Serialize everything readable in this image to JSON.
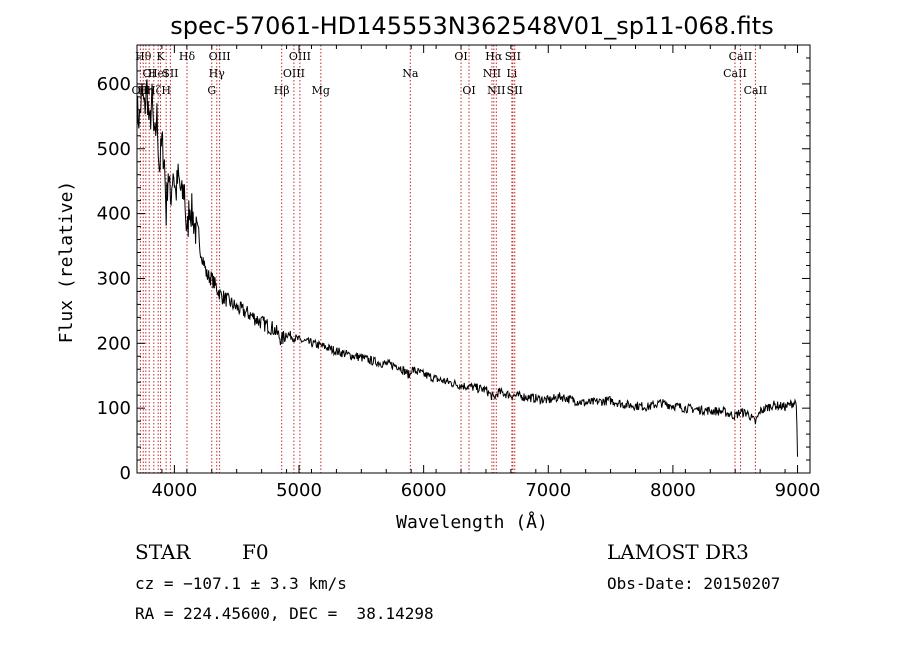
{
  "chart_data": {
    "type": "line",
    "title": "spec-57061-HD145553N362548V01_sp11-068.fits",
    "xlabel": "Wavelength (Å)",
    "ylabel": "Flux (relative)",
    "xlim": [
      3700,
      9100
    ],
    "ylim": [
      0,
      660
    ],
    "xticks": [
      4000,
      5000,
      6000,
      7000,
      8000,
      9000
    ],
    "yticks": [
      0,
      100,
      200,
      300,
      400,
      500,
      600
    ],
    "grid": false,
    "series": [
      {
        "name": "flux",
        "x": [
          3700,
          3720,
          3740,
          3760,
          3780,
          3800,
          3820,
          3840,
          3860,
          3880,
          3900,
          3920,
          3934,
          3950,
          3968,
          3990,
          4010,
          4030,
          4060,
          4080,
          4101,
          4120,
          4150,
          4180,
          4200,
          4230,
          4260,
          4300,
          4340,
          4370,
          4400,
          4500,
          4600,
          4700,
          4800,
          4861,
          4900,
          5000,
          5100,
          5200,
          5300,
          5400,
          5500,
          5600,
          5700,
          5800,
          5890,
          5900,
          6000,
          6100,
          6200,
          6300,
          6400,
          6500,
          6563,
          6600,
          6700,
          6800,
          6900,
          7000,
          7100,
          7200,
          7300,
          7400,
          7500,
          7600,
          7700,
          7800,
          7900,
          8000,
          8100,
          8200,
          8300,
          8400,
          8498,
          8542,
          8600,
          8662,
          8700,
          8800,
          8900,
          8990,
          9000
        ],
        "values": [
          560,
          545,
          585,
          560,
          595,
          530,
          575,
          505,
          550,
          470,
          510,
          480,
          400,
          470,
          420,
          470,
          430,
          455,
          425,
          440,
          360,
          415,
          395,
          365,
          350,
          330,
          305,
          300,
          285,
          275,
          270,
          255,
          245,
          232,
          222,
          205,
          215,
          205,
          200,
          195,
          188,
          182,
          178,
          172,
          168,
          165,
          150,
          160,
          152,
          145,
          140,
          135,
          132,
          128,
          115,
          125,
          120,
          118,
          115,
          112,
          118,
          112,
          108,
          110,
          112,
          106,
          104,
          102,
          108,
          104,
          100,
          98,
          96,
          95,
          88,
          94,
          92,
          78,
          95,
          105,
          102,
          110,
          25
        ]
      }
    ],
    "lines": [
      {
        "wave": 3727,
        "label": "OII",
        "row": 3
      },
      {
        "wave": 3750,
        "label": "Hθ",
        "row": 1
      },
      {
        "wave": 3771,
        "label": "Hη",
        "row": 3
      },
      {
        "wave": 3798,
        "label": "OI",
        "row": 2
      },
      {
        "wave": 3835,
        "label": "Hζ",
        "row": 3
      },
      {
        "wave": 3870,
        "label": "HeI",
        "row": 2
      },
      {
        "wave": 3889,
        "label": "K",
        "row": 1
      },
      {
        "wave": 3934,
        "label": "H",
        "row": 3
      },
      {
        "wave": 3968,
        "label": "SII",
        "row": 2
      },
      {
        "wave": 4101,
        "label": "Hδ",
        "row": 1
      },
      {
        "wave": 4300,
        "label": "G",
        "row": 3
      },
      {
        "wave": 4340,
        "label": "Hγ",
        "row": 2
      },
      {
        "wave": 4363,
        "label": "OIII",
        "row": 1
      },
      {
        "wave": 4861,
        "label": "Hβ",
        "row": 3
      },
      {
        "wave": 4959,
        "label": "OIII",
        "row": 2
      },
      {
        "wave": 5007,
        "label": "OIII",
        "row": 1
      },
      {
        "wave": 5175,
        "label": "Mg",
        "row": 3
      },
      {
        "wave": 5893,
        "label": "Na",
        "row": 2
      },
      {
        "wave": 6300,
        "label": "OI",
        "row": 1
      },
      {
        "wave": 6364,
        "label": "OI",
        "row": 3
      },
      {
        "wave": 6548,
        "label": "NII",
        "row": 2
      },
      {
        "wave": 6563,
        "label": "Hα",
        "row": 1
      },
      {
        "wave": 6583,
        "label": "NII",
        "row": 3
      },
      {
        "wave": 6708,
        "label": "Li",
        "row": 2
      },
      {
        "wave": 6716,
        "label": "SII",
        "row": 1
      },
      {
        "wave": 6731,
        "label": "SII",
        "row": 3
      },
      {
        "wave": 8498,
        "label": "CaII",
        "row": 2
      },
      {
        "wave": 8542,
        "label": "CaII",
        "row": 1
      },
      {
        "wave": 8662,
        "label": "CaII",
        "row": 3
      }
    ]
  },
  "footer": {
    "object_type": "STAR",
    "subclass": "F0",
    "survey": "LAMOST DR3",
    "redshift": "cz = −107.1 ± 3.3 km/s",
    "obs_date": "Obs-Date: 20150207",
    "coords": "RA = 224.45600, DEC =  38.14298"
  }
}
